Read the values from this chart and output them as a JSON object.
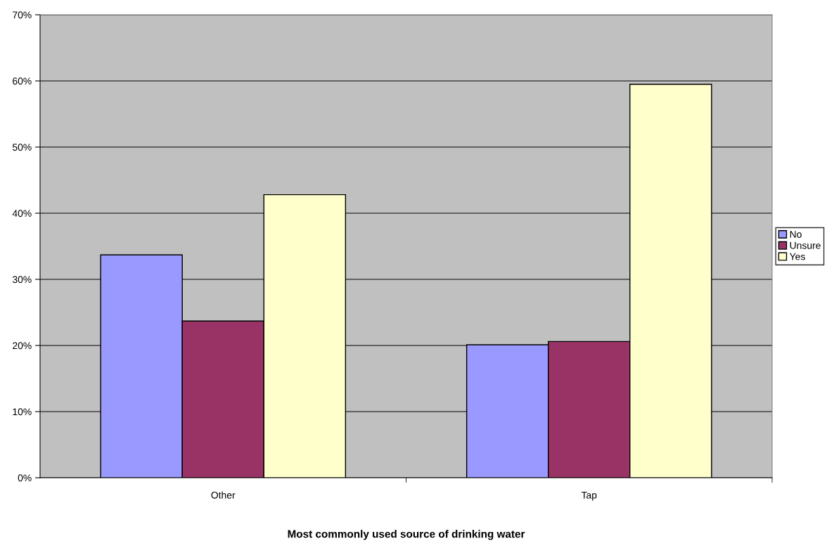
{
  "chart_data": {
    "type": "bar",
    "xlabel": "Most commonly used source of drinking water",
    "categories": [
      "Other",
      "Tap"
    ],
    "series": [
      {
        "name": "No",
        "color": "#9999ff",
        "values": [
          33.7,
          20.1
        ]
      },
      {
        "name": "Unsure",
        "color": "#993366",
        "values": [
          23.7,
          20.6
        ]
      },
      {
        "name": "Yes",
        "color": "#ffffcc",
        "values": [
          42.8,
          59.5
        ]
      }
    ],
    "ylim": [
      0,
      70
    ],
    "yticks": [
      {
        "value": 0,
        "label": "0%"
      },
      {
        "value": 10,
        "label": "10%"
      },
      {
        "value": 20,
        "label": "20%"
      },
      {
        "value": 30,
        "label": "30%"
      },
      {
        "value": 40,
        "label": "40%"
      },
      {
        "value": 50,
        "label": "50%"
      },
      {
        "value": 60,
        "label": "60%"
      },
      {
        "value": 70,
        "label": "70%"
      }
    ],
    "grid": "y",
    "legend": "right"
  }
}
